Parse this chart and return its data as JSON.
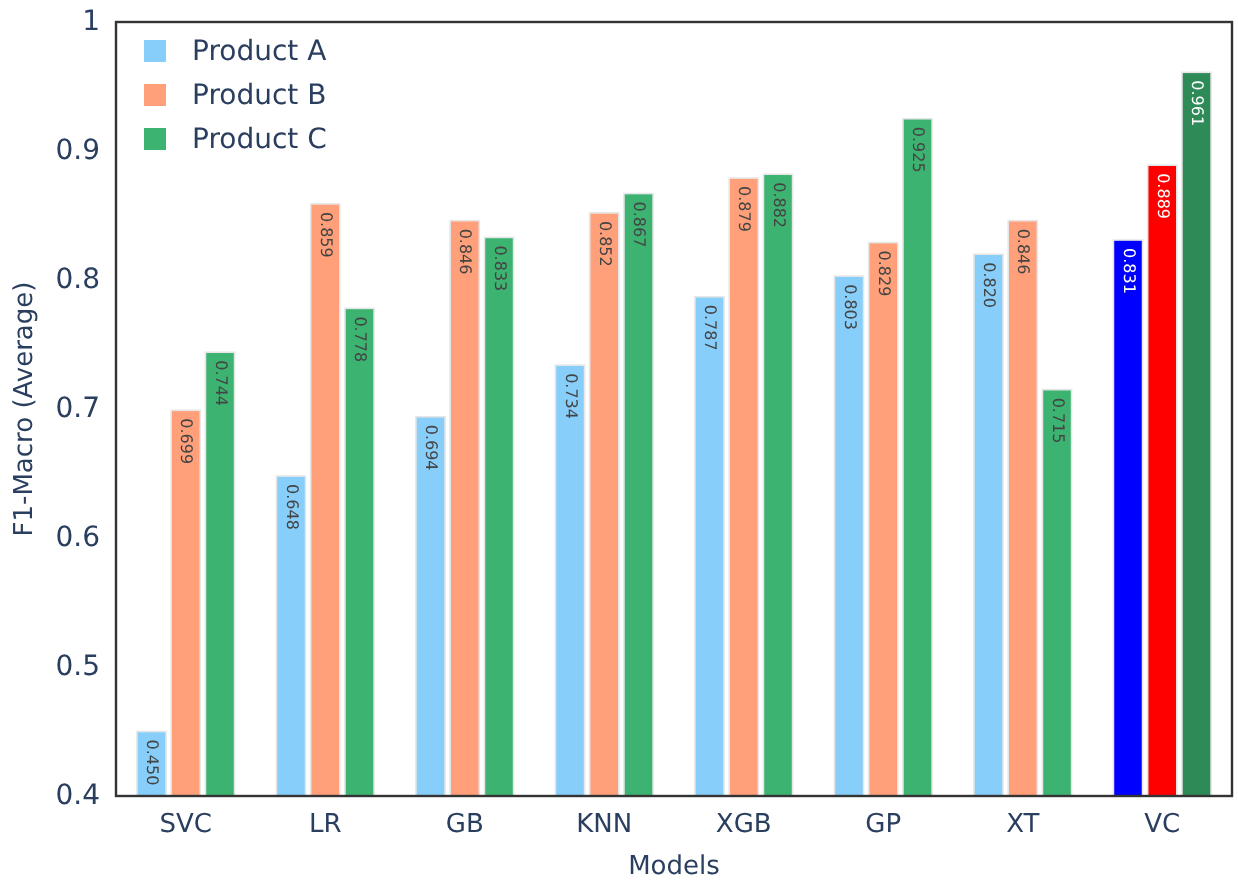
{
  "chart_data": {
    "type": "bar",
    "xlabel": "Models",
    "ylabel": "F1-Macro (Average)",
    "categories": [
      "SVC",
      "LR",
      "GB",
      "KNN",
      "XGB",
      "GP",
      "XT",
      "VC"
    ],
    "series": [
      {
        "name": "Product A",
        "color": "#87cefa",
        "colors": [
          "#87cefa",
          "#87cefa",
          "#87cefa",
          "#87cefa",
          "#87cefa",
          "#87cefa",
          "#87cefa",
          "#0000ff"
        ],
        "values": [
          0.45,
          0.648,
          0.694,
          0.734,
          0.787,
          0.803,
          0.82,
          0.831
        ],
        "value_labels": [
          "0.450",
          "0.648",
          "0.694",
          "0.734",
          "0.787",
          "0.803",
          "0.820",
          "0.831"
        ]
      },
      {
        "name": "Product B",
        "color": "#ffa07a",
        "colors": [
          "#ffa07a",
          "#ffa07a",
          "#ffa07a",
          "#ffa07a",
          "#ffa07a",
          "#ffa07a",
          "#ffa07a",
          "#ff0000"
        ],
        "values": [
          0.699,
          0.859,
          0.846,
          0.852,
          0.879,
          0.829,
          0.846,
          0.889
        ],
        "value_labels": [
          "0.699",
          "0.859",
          "0.846",
          "0.852",
          "0.879",
          "0.829",
          "0.846",
          "0.889"
        ]
      },
      {
        "name": "Product C",
        "color": "#3cb371",
        "colors": [
          "#3cb371",
          "#3cb371",
          "#3cb371",
          "#3cb371",
          "#3cb371",
          "#3cb371",
          "#3cb371",
          "#2e8b57"
        ],
        "values": [
          0.744,
          0.778,
          0.833,
          0.867,
          0.882,
          0.925,
          0.715,
          0.961
        ],
        "value_labels": [
          "0.744",
          "0.778",
          "0.833",
          "0.867",
          "0.882",
          "0.925",
          "0.715",
          "0.961"
        ]
      }
    ],
    "ylim": [
      0.4,
      1
    ],
    "yticks": [
      0.4,
      0.5,
      0.6,
      0.7,
      0.8,
      0.9,
      1
    ],
    "grid": false,
    "legend": "top left"
  }
}
